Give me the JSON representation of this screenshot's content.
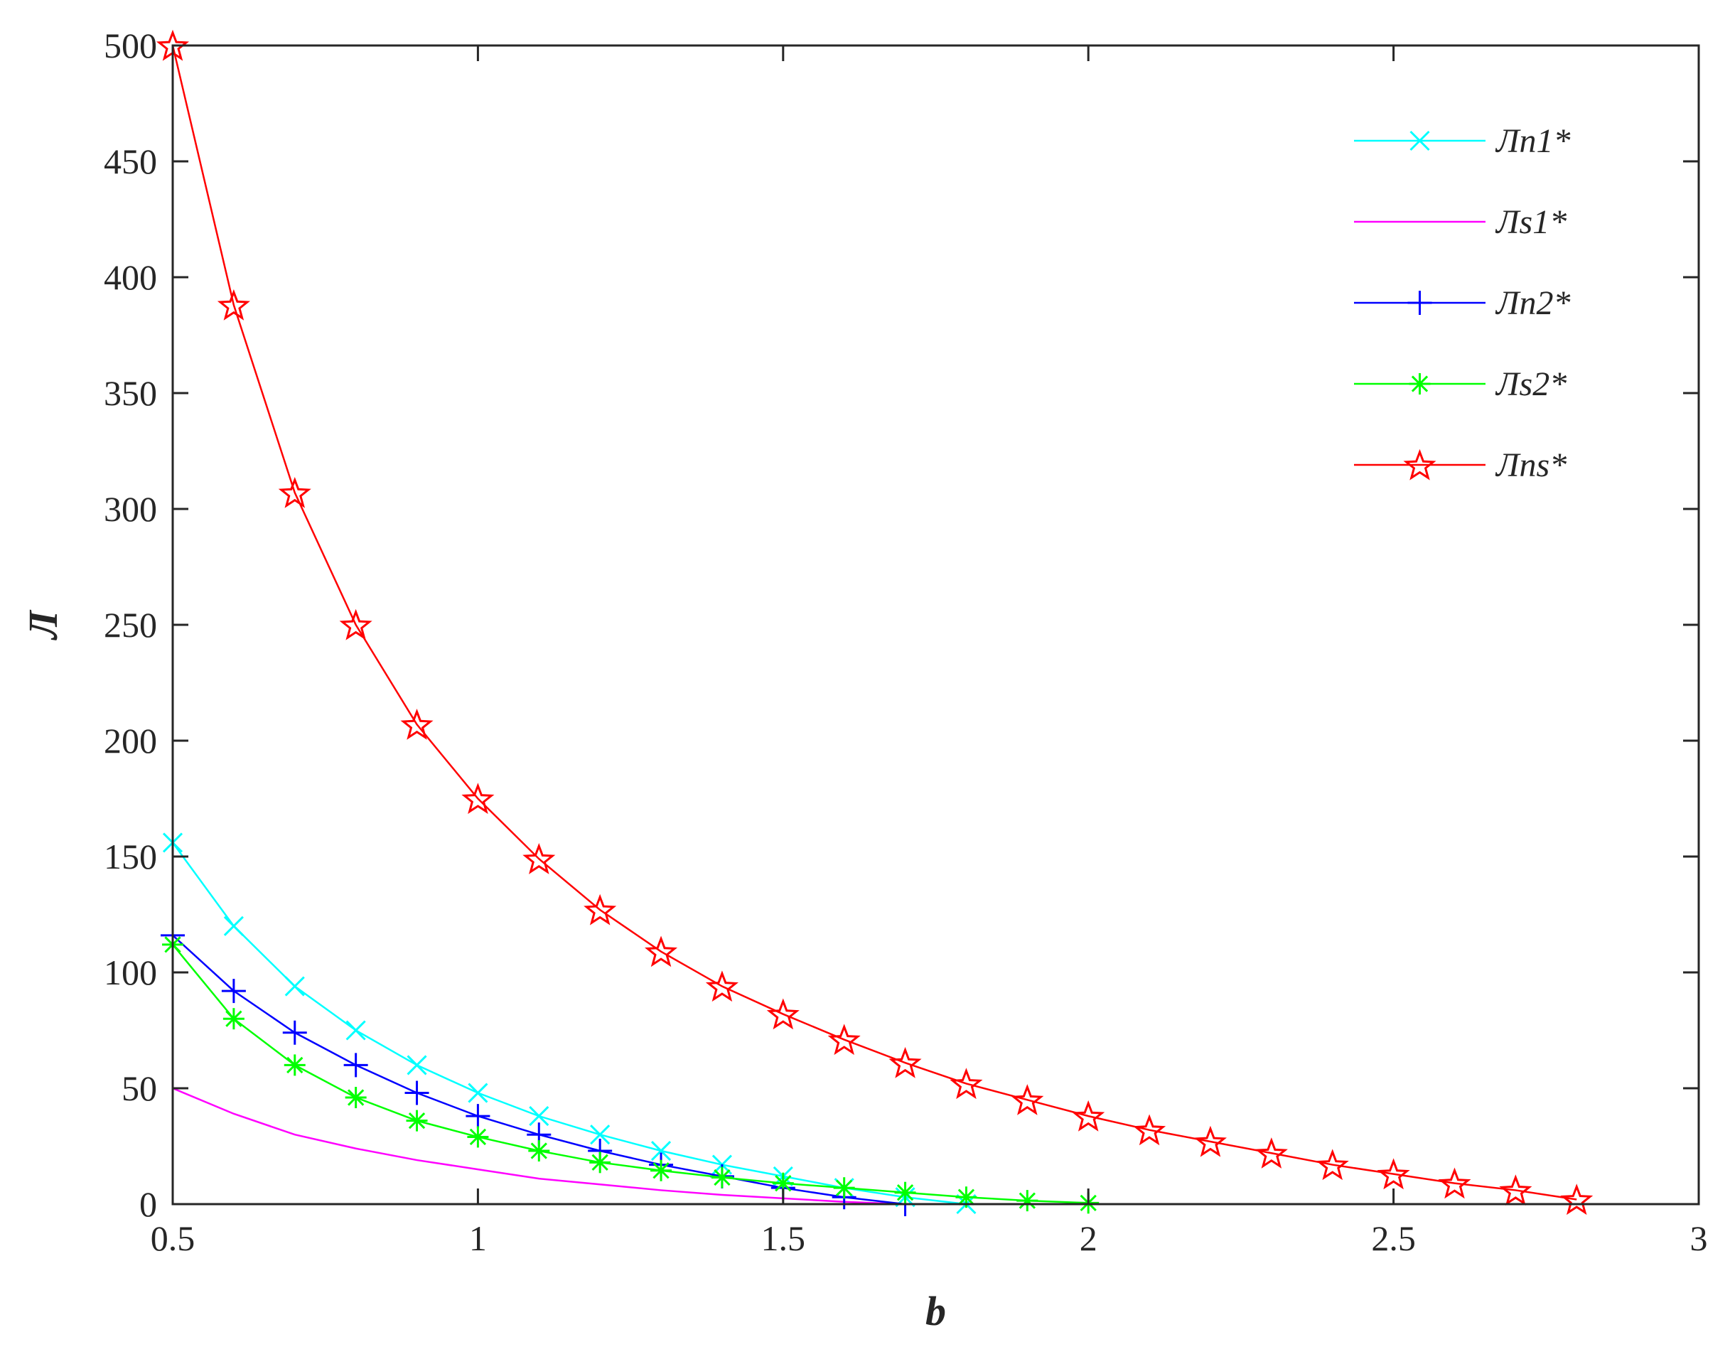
{
  "chart_data": {
    "type": "line",
    "xlabel": "b",
    "ylabel": "Л",
    "xlim": [
      0.5,
      3
    ],
    "ylim": [
      0,
      500
    ],
    "x_ticks": [
      "0.5",
      "1",
      "1.5",
      "2",
      "2.5",
      "3"
    ],
    "y_ticks": [
      "0",
      "50",
      "100",
      "150",
      "200",
      "250",
      "300",
      "350",
      "400",
      "450",
      "500"
    ],
    "grid": false,
    "legend_position": "top-right",
    "series": [
      {
        "name": "Лn1*",
        "color": "#00ffff",
        "marker": "x",
        "x": [
          0.5,
          0.6,
          0.7,
          0.8,
          0.9,
          1.0,
          1.1,
          1.2,
          1.3,
          1.4,
          1.5,
          1.6,
          1.7,
          1.8
        ],
        "y": [
          156,
          120,
          94,
          75,
          60,
          48,
          38,
          30,
          23,
          17,
          12,
          7,
          3,
          0
        ]
      },
      {
        "name": "Лs1*",
        "color": "#ff00ff",
        "marker": "none",
        "x": [
          0.5,
          0.6,
          0.7,
          0.8,
          0.9,
          1.0,
          1.1,
          1.2,
          1.3,
          1.4,
          1.5,
          1.6,
          1.7
        ],
        "y": [
          50,
          39,
          30,
          24,
          19,
          15,
          11,
          8.5,
          6,
          4,
          2.5,
          1,
          0
        ]
      },
      {
        "name": "Лn2*",
        "color": "#0000ff",
        "marker": "+",
        "x": [
          0.5,
          0.6,
          0.7,
          0.8,
          0.9,
          1.0,
          1.1,
          1.2,
          1.3,
          1.4,
          1.5,
          1.6,
          1.7
        ],
        "y": [
          116,
          92,
          74,
          60,
          48,
          38,
          30,
          23,
          17,
          12,
          7,
          3,
          0
        ]
      },
      {
        "name": "Лs2*",
        "color": "#00ff00",
        "marker": "*",
        "x": [
          0.5,
          0.6,
          0.7,
          0.8,
          0.9,
          1.0,
          1.1,
          1.2,
          1.3,
          1.4,
          1.5,
          1.6,
          1.7,
          1.8,
          1.9,
          2.0
        ],
        "y": [
          112,
          80,
          60,
          46,
          36,
          29,
          23,
          18,
          14.5,
          11.5,
          9,
          7,
          5,
          3,
          1.5,
          0.5
        ]
      },
      {
        "name": "Лns*",
        "color": "#ff0000",
        "marker": "pentagram",
        "x": [
          0.5,
          0.6,
          0.7,
          0.8,
          0.9,
          1.0,
          1.1,
          1.2,
          1.3,
          1.4,
          1.5,
          1.6,
          1.7,
          1.8,
          1.9,
          2.0,
          2.1,
          2.2,
          2.3,
          2.4,
          2.5,
          2.6,
          2.7,
          2.8
        ],
        "y": [
          500,
          388,
          307,
          250,
          207,
          175,
          149,
          127,
          109,
          94,
          82,
          71,
          61,
          52,
          45,
          38,
          32,
          27,
          22,
          17,
          13,
          9,
          6,
          2
        ]
      }
    ]
  }
}
